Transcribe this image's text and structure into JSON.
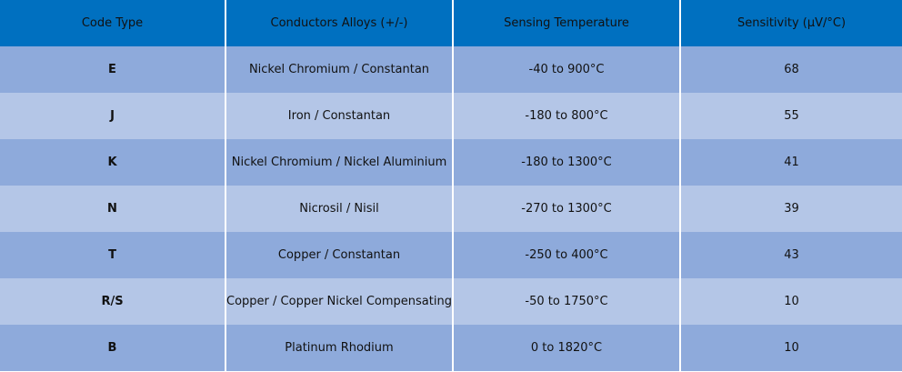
{
  "table": {
    "header": [
      "Code Type",
      "Conductors Alloys (+/-)",
      "Sensing Temperature",
      "Sensitivity (µV/°C)"
    ],
    "rows": [
      [
        "E",
        "Nickel Chromium / Constantan",
        "-40 to 900°C",
        "68"
      ],
      [
        "J",
        "Iron / Constantan",
        "-180 to 800°C",
        "55"
      ],
      [
        "K",
        "Nickel Chromium / Nickel Aluminium",
        "-180 to 1300°C",
        "41"
      ],
      [
        "N",
        "Nicrosil / Nisil",
        "-270 to 1300°C",
        "39"
      ],
      [
        "T",
        "Copper / Constantan",
        "-250 to 400°C",
        "43"
      ],
      [
        "R/S",
        "Copper / Copper Nickel Compensating",
        "-50 to 1750°C",
        "10"
      ],
      [
        "B",
        "Platinum Rhodium",
        "0 to 1820°C",
        "10"
      ]
    ]
  }
}
